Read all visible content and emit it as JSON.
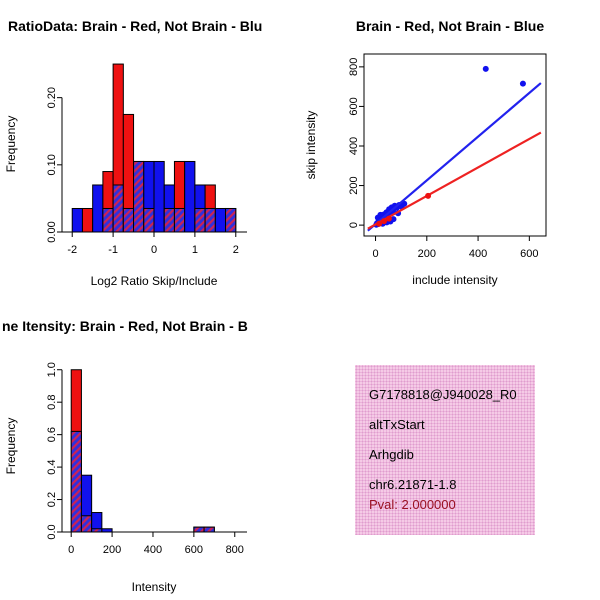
{
  "figure": {
    "background": "#ffffff"
  },
  "colors": {
    "red": "#ee1111",
    "blue": "#1111ee",
    "hatch_base": "#3030dd",
    "hatch_stripe": "#cc2255",
    "axis": "#000000",
    "scatter_line_blue": "#2222ee",
    "scatter_line_red": "#ee2222",
    "info_box_bg": "#f5cae6",
    "pval": "#991122"
  },
  "chart_data": [
    {
      "id": "ratio-histogram",
      "type": "bar",
      "title": "RatioData: Brain - Red, Not Brain - Blu",
      "xlabel": "Log2 Ratio Skip/Include",
      "ylabel": "Frequency",
      "xlim": [
        -2.25,
        2.25
      ],
      "ylim": [
        0,
        0.262
      ],
      "xticks": [
        -2,
        -1,
        0,
        1,
        2
      ],
      "xtick_labels": [
        "-2",
        "-1",
        "0",
        "1",
        "2"
      ],
      "yticks": [
        0,
        0.1,
        0.2
      ],
      "ytick_labels": [
        "0.00",
        "0.10",
        "0.20"
      ],
      "bin_start": -2.0,
      "bin_width": 0.25,
      "series": [
        {
          "name": "brain-red",
          "color_key": "red",
          "values": [
            0,
            0.035,
            0,
            0.09,
            0.25,
            0.175,
            0.105,
            0.035,
            0,
            0.035,
            0.105,
            0,
            0.035,
            0.07,
            0,
            0.035
          ]
        },
        {
          "name": "not-brain-blue",
          "color_key": "blue",
          "values": [
            0.035,
            0,
            0.07,
            0.035,
            0.07,
            0.035,
            0.105,
            0.105,
            0.105,
            0.07,
            0.035,
            0.105,
            0.07,
            0.035,
            0.035,
            0.035
          ]
        }
      ]
    },
    {
      "id": "scatter",
      "type": "scatter",
      "title": "Brain - Red, Not Brain - Blue",
      "xlabel": "include intensity",
      "ylabel": "skip intensity",
      "xlim": [
        -45,
        665
      ],
      "ylim": [
        -55,
        865
      ],
      "xticks": [
        0,
        200,
        400,
        600
      ],
      "xtick_labels": [
        "0",
        "200",
        "400",
        "600"
      ],
      "yticks": [
        0,
        200,
        400,
        600,
        800
      ],
      "ytick_labels": [
        "0",
        "200",
        "400",
        "600",
        "800"
      ],
      "series": [
        {
          "name": "not-brain-blue",
          "color_key": "blue",
          "points": [
            [
              3,
              2
            ],
            [
              6,
              10
            ],
            [
              10,
              5
            ],
            [
              13,
              22
            ],
            [
              17,
              12
            ],
            [
              20,
              32
            ],
            [
              24,
              18
            ],
            [
              27,
              42
            ],
            [
              31,
              28
            ],
            [
              34,
              55
            ],
            [
              38,
              38
            ],
            [
              43,
              65
            ],
            [
              48,
              52
            ],
            [
              53,
              80
            ],
            [
              58,
              62
            ],
            [
              63,
              90
            ],
            [
              68,
              72
            ],
            [
              75,
              98
            ],
            [
              83,
              88
            ],
            [
              92,
              102
            ],
            [
              102,
              93
            ],
            [
              112,
              108
            ],
            [
              58,
              18
            ],
            [
              28,
              7
            ],
            [
              44,
              14
            ],
            [
              19,
              52
            ],
            [
              9,
              38
            ],
            [
              70,
              30
            ],
            [
              88,
              60
            ],
            [
              430,
              790
            ],
            [
              575,
              715
            ]
          ]
        },
        {
          "name": "brain-red",
          "color_key": "red",
          "points": [
            [
              14,
              7
            ],
            [
              33,
              20
            ],
            [
              52,
              33
            ],
            [
              205,
              148
            ]
          ]
        }
      ],
      "lines": [
        {
          "name": "blue-fit-line",
          "color_key": "scatter_line_blue",
          "from": [
            -30,
            -28
          ],
          "to": [
            645,
            718
          ]
        },
        {
          "name": "red-fit-line",
          "color_key": "scatter_line_red",
          "from": [
            -30,
            -18
          ],
          "to": [
            645,
            468
          ]
        }
      ]
    },
    {
      "id": "intensity-histogram",
      "type": "bar",
      "title": "ne Itensity: Brain - Red, Not Brain - B",
      "xlabel": "Intensity",
      "ylabel": "Frequency",
      "xlim": [
        -45,
        855
      ],
      "ylim": [
        0,
        1.06
      ],
      "xticks": [
        0,
        200,
        400,
        600,
        800
      ],
      "xtick_labels": [
        "0",
        "200",
        "400",
        "600",
        "800"
      ],
      "yticks": [
        0,
        0.2,
        0.4,
        0.6,
        0.8,
        1.0
      ],
      "ytick_labels": [
        "0.0",
        "0.2",
        "0.4",
        "0.6",
        "0.8",
        "1.0"
      ],
      "bin_start": 0,
      "bin_width": 50,
      "series": [
        {
          "name": "brain-red",
          "color_key": "red",
          "values": [
            1.0,
            0.1,
            0.02,
            0,
            0,
            0,
            0,
            0,
            0,
            0,
            0,
            0,
            0.03,
            0.03,
            0,
            0
          ]
        },
        {
          "name": "not-brain-blue",
          "color_key": "blue",
          "values": [
            0.62,
            0.35,
            0.12,
            0.02,
            0,
            0,
            0,
            0,
            0,
            0,
            0,
            0,
            0.03,
            0.03,
            0,
            0
          ]
        }
      ]
    }
  ],
  "info_box": {
    "lines": [
      {
        "text": "G7178818@J940028_R0",
        "color": "#000000"
      },
      {
        "text": "altTxStart",
        "color": "#000000"
      },
      {
        "text": "Arhgdib",
        "color": "#000000"
      },
      {
        "text": "chr6.21871-1.8",
        "color": "#000000"
      },
      {
        "text": "Pval: 2.000000",
        "color": "#991122"
      }
    ]
  }
}
